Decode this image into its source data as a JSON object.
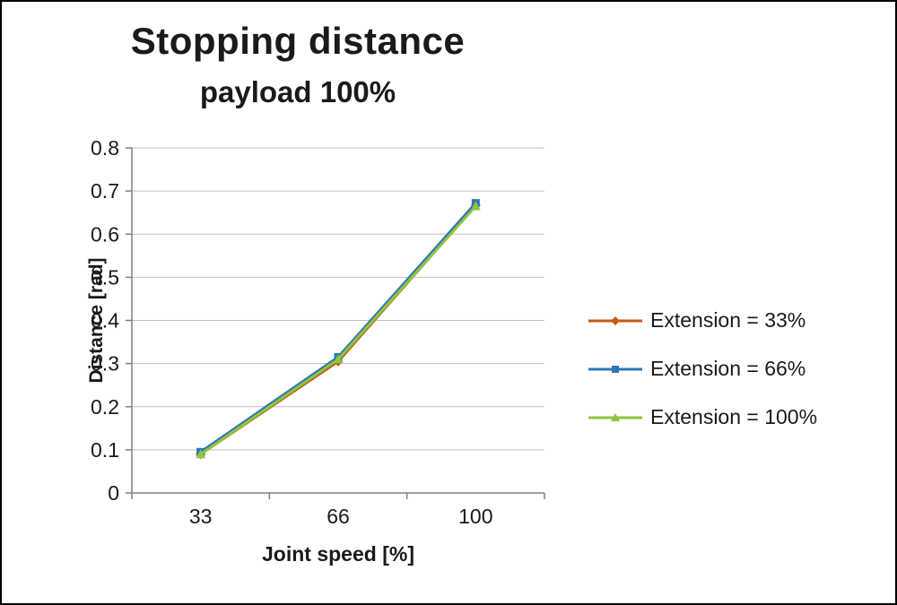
{
  "title": "Stopping distance",
  "subtitle": "payload 100%",
  "chart_data": {
    "type": "line",
    "title": "Stopping distance",
    "subtitle": "payload 100%",
    "xlabel": "Joint speed [%]",
    "ylabel": "Distance [rad]",
    "categories": [
      "33",
      "66",
      "100"
    ],
    "series": [
      {
        "name": "Extension = 33%",
        "values": [
          0.09,
          0.305,
          0.667
        ],
        "color": "#C55A11",
        "marker": "diamond"
      },
      {
        "name": "Extension = 66%",
        "values": [
          0.095,
          0.315,
          0.672
        ],
        "color": "#2E75B6",
        "marker": "square"
      },
      {
        "name": "Extension = 100%",
        "values": [
          0.09,
          0.31,
          0.665
        ],
        "color": "#8DC63F",
        "marker": "triangle"
      }
    ],
    "ylim": [
      0,
      0.8
    ],
    "ytick_step": 0.1,
    "grid": true,
    "legend_position": "right",
    "axis_color": "#808080",
    "grid_color": "#BFBFBF",
    "text_color": "#1A1A1A"
  }
}
